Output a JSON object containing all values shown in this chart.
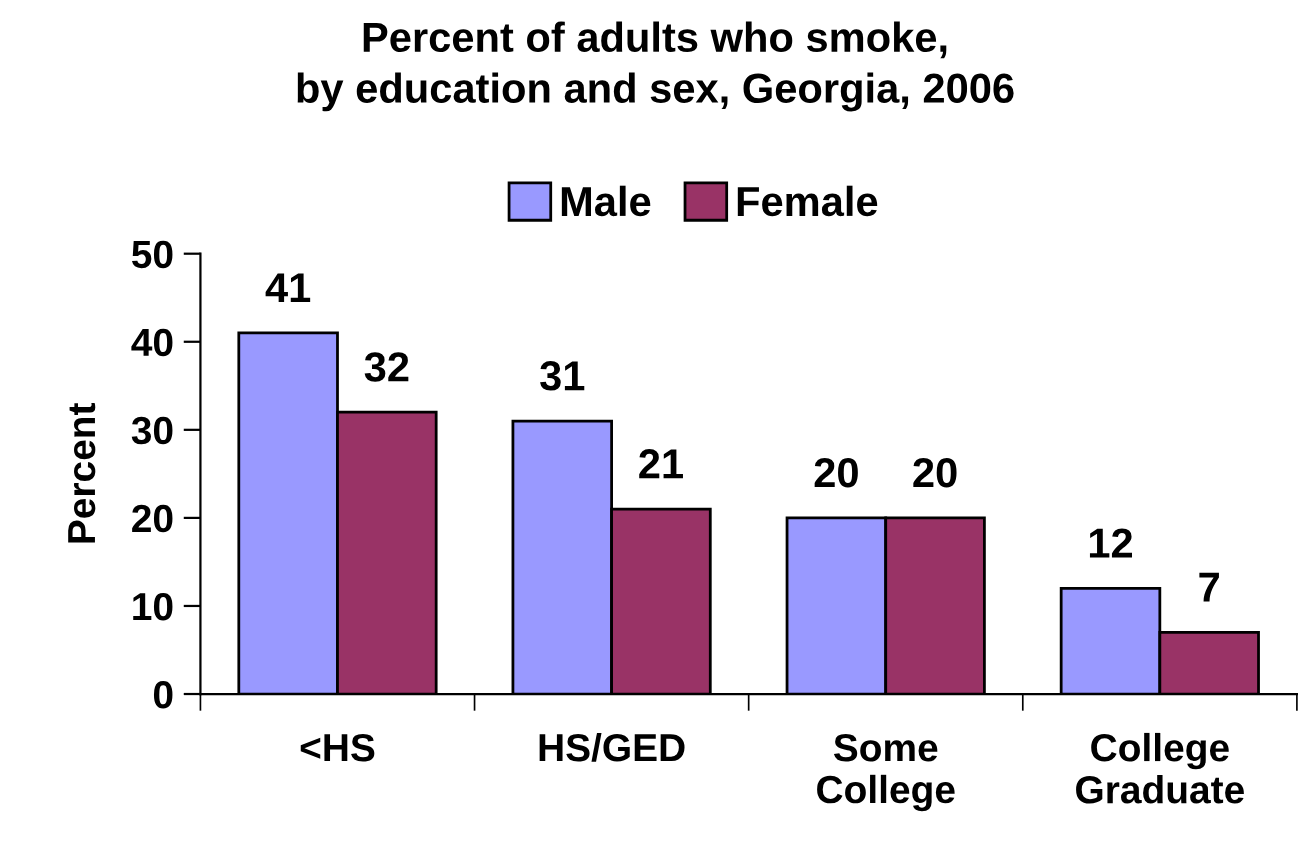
{
  "chart_data": {
    "type": "bar",
    "title": "Percent of adults who smoke,\nby education and sex, Georgia, 2006",
    "ylabel": "Percent",
    "categories": [
      "<HS",
      "HS/GED",
      "Some\nCollege",
      "College\nGraduate"
    ],
    "series": [
      {
        "name": "Male",
        "color": "#9999ff",
        "values": [
          41,
          31,
          20,
          12
        ]
      },
      {
        "name": "Female",
        "color": "#993366",
        "values": [
          32,
          21,
          20,
          7
        ]
      }
    ],
    "ylim": [
      0,
      50
    ],
    "yticks": [
      0,
      10,
      20,
      30,
      40,
      50
    ],
    "data_labels": true,
    "legend": "top",
    "grid": false
  }
}
